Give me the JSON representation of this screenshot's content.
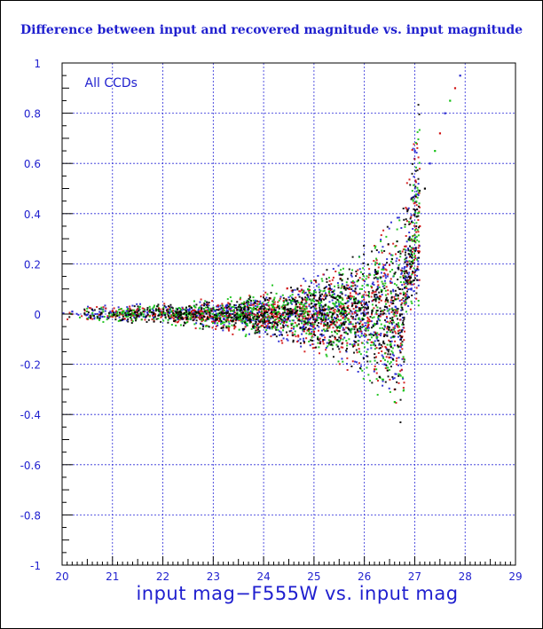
{
  "chart_data": {
    "type": "scatter",
    "title": "Difference between input and recovered magnitude vs. input magnitude",
    "xlabel": "input mag−F555W vs. input mag",
    "ylabel": "",
    "annotation": "All CCDs",
    "xlim": [
      20,
      29
    ],
    "ylim": [
      -1,
      1
    ],
    "grid": true,
    "x_ticks": [
      "20",
      "21",
      "22",
      "23",
      "24",
      "25",
      "26",
      "27",
      "28",
      "29"
    ],
    "y_ticks": [
      "1",
      "0.8",
      "0.6",
      "0.4",
      "0.2",
      "0",
      "-0.2",
      "-0.4",
      "-0.6",
      "-0.8",
      "-1"
    ],
    "series": [
      {
        "color": "#1f1fcf",
        "values": [
          [
            20.2,
            0.01
          ],
          [
            20.8,
            -0.01
          ],
          [
            21.5,
            0.02
          ],
          [
            22.3,
            -0.02
          ],
          [
            23.1,
            0.03
          ],
          [
            23.8,
            -0.04
          ],
          [
            24.4,
            0.05
          ],
          [
            24.9,
            -0.06
          ],
          [
            25.4,
            0.08
          ],
          [
            25.8,
            -0.12
          ],
          [
            26.1,
            0.16
          ],
          [
            26.4,
            -0.2
          ],
          [
            26.7,
            0.25
          ],
          [
            27.0,
            0.4
          ],
          [
            27.3,
            0.6
          ],
          [
            27.6,
            0.8
          ],
          [
            27.9,
            0.95
          ]
        ]
      },
      {
        "color": "#d01010",
        "values": [
          [
            21.0,
            -0.01
          ],
          [
            22.0,
            0.02
          ],
          [
            23.0,
            -0.03
          ],
          [
            24.0,
            0.04
          ],
          [
            25.0,
            -0.07
          ],
          [
            25.7,
            0.1
          ],
          [
            26.2,
            -0.22
          ],
          [
            26.6,
            -0.3
          ],
          [
            27.1,
            0.35
          ],
          [
            27.5,
            0.72
          ],
          [
            27.8,
            0.9
          ]
        ]
      },
      {
        "color": "#10c010",
        "values": [
          [
            21.3,
            0.02
          ],
          [
            22.5,
            -0.02
          ],
          [
            23.6,
            0.04
          ],
          [
            24.6,
            -0.05
          ],
          [
            25.3,
            0.09
          ],
          [
            25.9,
            -0.15
          ],
          [
            26.3,
            0.2
          ],
          [
            26.6,
            -0.35
          ],
          [
            27.0,
            0.3
          ],
          [
            27.4,
            0.65
          ],
          [
            27.7,
            0.85
          ]
        ]
      },
      {
        "color": "#000000",
        "values": [
          [
            21.2,
            -0.02
          ],
          [
            23.3,
            0.03
          ],
          [
            24.8,
            -0.06
          ],
          [
            25.6,
            0.11
          ],
          [
            26.3,
            -0.25
          ],
          [
            26.9,
            0.2
          ],
          [
            27.2,
            0.5
          ]
        ]
      }
    ]
  }
}
